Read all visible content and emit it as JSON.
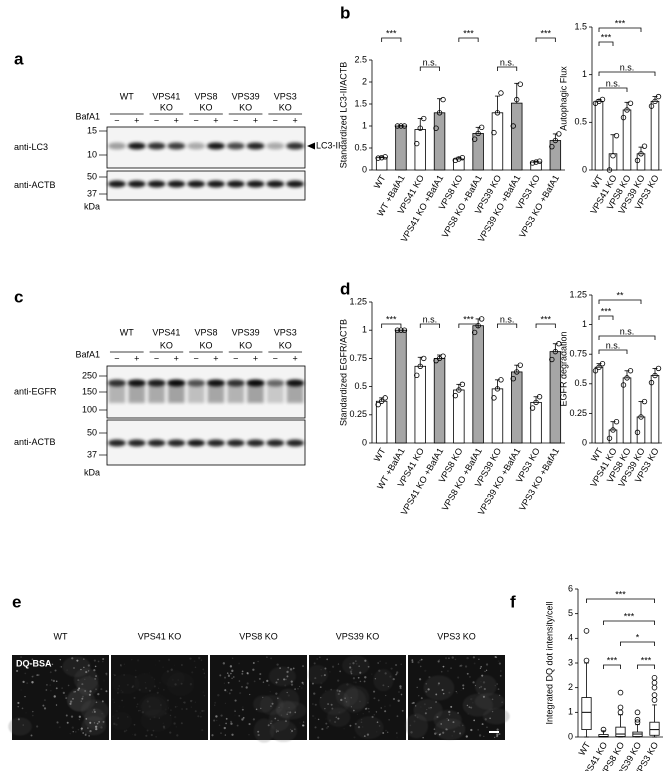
{
  "figure": {
    "panel_labels": [
      "a",
      "b",
      "c",
      "d",
      "e",
      "f"
    ]
  },
  "blots": [
    {
      "treatment": "BafA1",
      "treatment_signs": [
        "−",
        "+"
      ],
      "groups": [
        [
          "WT"
        ],
        [
          "VPS41",
          "KO"
        ],
        [
          "VPS8",
          "KO"
        ],
        [
          "VPS39",
          "KO"
        ],
        [
          "VPS3",
          "KO"
        ]
      ],
      "rows": [
        {
          "label": "anti-LC3",
          "markers": [
            15,
            10
          ],
          "arrow_label": "LC3-II"
        },
        {
          "label": "anti-ACTB",
          "markers": [
            50,
            37
          ]
        }
      ],
      "unit": "kDa"
    },
    {
      "treatment": "BafA1",
      "treatment_signs": [
        "−",
        "+"
      ],
      "groups": [
        [
          "WT"
        ],
        [
          "VPS41",
          "KO"
        ],
        [
          "VPS8",
          "KO"
        ],
        [
          "VPS39",
          "KO"
        ],
        [
          "VPS3",
          "KO"
        ]
      ],
      "rows": [
        {
          "label": "anti-EGFR",
          "markers": [
            250,
            150,
            100
          ]
        },
        {
          "label": "anti-ACTB",
          "markers": [
            50,
            37
          ]
        }
      ],
      "unit": "kDa"
    }
  ],
  "microscopy": {
    "labels": [
      "WT",
      "VPS41 KO",
      "VPS8 KO",
      "VPS39 KO",
      "VPS3 KO"
    ],
    "stain": "DQ-BSA"
  },
  "chart_data": [
    {
      "type": "bar",
      "y_label": "Standardized LC3-II/ACTB",
      "categories": [
        "WT",
        "WT +BafA1",
        "VPS41 KO",
        "VPS41 KO +BafA1",
        "VPS8 KO",
        "VPS8 KO +BafA1",
        "VPS39 KO",
        "VPS39 KO +BafA1",
        "VPS3 KO",
        "VPS3 KO +BafA1"
      ],
      "values": [
        0.28,
        1.0,
        0.92,
        1.3,
        0.25,
        0.83,
        1.3,
        1.52,
        0.18,
        0.67
      ],
      "errors": [
        0.02,
        0.01,
        0.25,
        0.32,
        0.04,
        0.14,
        0.38,
        0.45,
        0.02,
        0.15
      ],
      "points": [
        [
          0.27,
          0.28,
          0.3
        ],
        [
          1.0,
          1.0,
          1.0
        ],
        [
          0.6,
          0.95,
          1.17
        ],
        [
          0.95,
          1.3,
          1.6
        ],
        [
          0.22,
          0.25,
          0.28
        ],
        [
          0.7,
          0.83,
          0.97
        ],
        [
          0.85,
          1.3,
          1.75
        ],
        [
          1.0,
          1.6,
          1.95
        ],
        [
          0.16,
          0.18,
          0.2
        ],
        [
          0.53,
          0.67,
          0.82
        ]
      ],
      "colors": [
        "#ffffff",
        "#a6a6a6",
        "#ffffff",
        "#a6a6a6",
        "#ffffff",
        "#a6a6a6",
        "#ffffff",
        "#a6a6a6",
        "#ffffff",
        "#a6a6a6"
      ],
      "ylim": [
        0,
        2.5
      ],
      "yticks": [
        0,
        0.5,
        1,
        1.5,
        2,
        2.5
      ],
      "brackets": [
        {
          "label": "***",
          "between": [
            "WT",
            "WT +BafA1"
          ]
        },
        {
          "label": "n.s.",
          "between": [
            "VPS41 KO",
            "VPS41 KO +BafA1"
          ]
        },
        {
          "label": "***",
          "between": [
            "VPS8 KO",
            "VPS8 KO +BafA1"
          ]
        },
        {
          "label": "n.s.",
          "between": [
            "VPS39 KO",
            "VPS39 KO +BafA1"
          ]
        },
        {
          "label": "***",
          "between": [
            "VPS3 KO",
            "VPS3 KO +BafA1"
          ]
        }
      ]
    },
    {
      "type": "bar",
      "y_label": "Autophagic Flux",
      "categories": [
        "WT",
        "VPS41 KO",
        "VPS8 KO",
        "VPS39 KO",
        "VPS3 KO"
      ],
      "values": [
        0.72,
        0.17,
        0.63,
        0.17,
        0.72
      ],
      "errors": [
        0.02,
        0.2,
        0.08,
        0.07,
        0.05
      ],
      "points": [
        [
          0.7,
          0.72,
          0.74
        ],
        [
          0.0,
          0.15,
          0.36
        ],
        [
          0.55,
          0.63,
          0.7
        ],
        [
          0.1,
          0.17,
          0.25
        ],
        [
          0.67,
          0.72,
          0.77
        ]
      ],
      "colors": [
        "#ffffff",
        "#ffffff",
        "#ffffff",
        "#ffffff",
        "#ffffff"
      ],
      "ylim": [
        0,
        1.5
      ],
      "yticks": [
        0,
        0.5,
        1,
        1.5
      ],
      "brackets": [
        {
          "label": "***",
          "between": [
            "WT",
            "VPS41 KO"
          ]
        },
        {
          "label": "***",
          "between": [
            "WT",
            "VPS39 KO"
          ]
        },
        {
          "label": "n.s.",
          "between": [
            "WT",
            "VPS8 KO"
          ]
        },
        {
          "label": "n.s.",
          "between": [
            "WT",
            "VPS3 KO"
          ]
        }
      ]
    },
    {
      "type": "bar",
      "y_label": "Standardized EGFR/ACTB",
      "categories": [
        "WT",
        "WT +BafA1",
        "VPS41 KO",
        "VPS41 KO +BafA1",
        "VPS8 KO",
        "VPS8 KO +BafA1",
        "VPS39 KO",
        "VPS39 KO +BafA1",
        "VPS3 KO",
        "VPS3 KO +BafA1"
      ],
      "values": [
        0.37,
        1.0,
        0.68,
        0.75,
        0.47,
        1.04,
        0.48,
        0.63,
        0.36,
        0.81
      ],
      "errors": [
        0.03,
        0.0,
        0.08,
        0.03,
        0.05,
        0.06,
        0.08,
        0.06,
        0.05,
        0.07
      ],
      "points": [
        [
          0.34,
          0.37,
          0.4
        ],
        [
          1.0,
          1.0,
          1.0
        ],
        [
          0.6,
          0.68,
          0.75
        ],
        [
          0.73,
          0.75,
          0.77
        ],
        [
          0.42,
          0.47,
          0.52
        ],
        [
          0.98,
          1.04,
          1.1
        ],
        [
          0.4,
          0.48,
          0.56
        ],
        [
          0.57,
          0.63,
          0.69
        ],
        [
          0.31,
          0.36,
          0.41
        ],
        [
          0.74,
          0.81,
          0.88
        ]
      ],
      "colors": [
        "#ffffff",
        "#a6a6a6",
        "#ffffff",
        "#a6a6a6",
        "#ffffff",
        "#a6a6a6",
        "#ffffff",
        "#a6a6a6",
        "#ffffff",
        "#a6a6a6"
      ],
      "ylim": [
        0,
        1.25
      ],
      "yticks": [
        0,
        0.25,
        0.5,
        0.75,
        1,
        1.25
      ],
      "brackets": [
        {
          "label": "***",
          "between": [
            "WT",
            "WT +BafA1"
          ]
        },
        {
          "label": "n.s.",
          "between": [
            "VPS41 KO",
            "VPS41 KO +BafA1"
          ]
        },
        {
          "label": "***",
          "between": [
            "VPS8 KO",
            "VPS8 KO +BafA1"
          ]
        },
        {
          "label": "n.s.",
          "between": [
            "VPS39 KO",
            "VPS39 KO +BafA1"
          ]
        },
        {
          "label": "***",
          "between": [
            "VPS3 KO",
            "VPS3 KO +BafA1"
          ]
        }
      ]
    },
    {
      "type": "bar",
      "y_label": "EGFR degradation",
      "categories": [
        "WT",
        "VPS41 KO",
        "VPS8 KO",
        "VPS39 KO",
        "VPS3 KO"
      ],
      "values": [
        0.64,
        0.11,
        0.55,
        0.22,
        0.57
      ],
      "errors": [
        0.03,
        0.07,
        0.06,
        0.13,
        0.06
      ],
      "points": [
        [
          0.61,
          0.64,
          0.67
        ],
        [
          0.04,
          0.11,
          0.18
        ],
        [
          0.49,
          0.55,
          0.61
        ],
        [
          0.09,
          0.22,
          0.35
        ],
        [
          0.51,
          0.57,
          0.63
        ]
      ],
      "colors": [
        "#ffffff",
        "#ffffff",
        "#ffffff",
        "#ffffff",
        "#ffffff"
      ],
      "ylim": [
        0,
        1.25
      ],
      "yticks": [
        0,
        0.25,
        0.5,
        0.75,
        1,
        1.25
      ],
      "brackets": [
        {
          "label": "***",
          "between": [
            "WT",
            "VPS41 KO"
          ]
        },
        {
          "label": "**",
          "between": [
            "WT",
            "VPS39 KO"
          ]
        },
        {
          "label": "n.s.",
          "between": [
            "WT",
            "VPS8 KO"
          ]
        },
        {
          "label": "n.s.",
          "between": [
            "WT",
            "VPS3 KO"
          ]
        }
      ]
    },
    {
      "type": "box",
      "y_label": "Integrated DQ dot intensity/cell",
      "categories": [
        "WT",
        "VPS41 KO",
        "VPS8 KO",
        "VPS39 KO",
        "VPS3 KO"
      ],
      "boxes": [
        {
          "whislo": 0,
          "q1": 0.3,
          "med": 1.0,
          "q3": 1.6,
          "whishi": 3.0,
          "fliers": [
            3.1,
            4.3
          ]
        },
        {
          "whislo": 0,
          "q1": 0,
          "med": 0.02,
          "q3": 0.1,
          "whishi": 0.25,
          "fliers": [
            0.3
          ]
        },
        {
          "whislo": 0,
          "q1": 0.02,
          "med": 0.12,
          "q3": 0.4,
          "whishi": 0.9,
          "fliers": [
            1.0,
            1.2,
            1.8
          ]
        },
        {
          "whislo": 0,
          "q1": 0.02,
          "med": 0.12,
          "q3": 0.2,
          "whishi": 0.5,
          "fliers": [
            0.6,
            0.7,
            1.0
          ]
        },
        {
          "whislo": 0,
          "q1": 0.07,
          "med": 0.3,
          "q3": 0.6,
          "whishi": 1.3,
          "fliers": [
            1.5,
            1.7,
            2.0,
            2.2,
            2.4
          ]
        }
      ],
      "ylim": [
        0,
        6
      ],
      "yticks": [
        0,
        1,
        2,
        3,
        4,
        5,
        6
      ],
      "brackets": [
        {
          "label": "***",
          "between": [
            "WT",
            "VPS3 KO"
          ]
        },
        {
          "label": "***",
          "between": [
            "VPS41 KO",
            "VPS3 KO"
          ]
        },
        {
          "label": "*",
          "between": [
            "VPS8 KO",
            "VPS3 KO"
          ]
        },
        {
          "label": "***",
          "between": [
            "VPS41 KO",
            "VPS8 KO"
          ]
        },
        {
          "label": "***",
          "between": [
            "VPS39 KO",
            "VPS3 KO"
          ]
        }
      ]
    }
  ]
}
